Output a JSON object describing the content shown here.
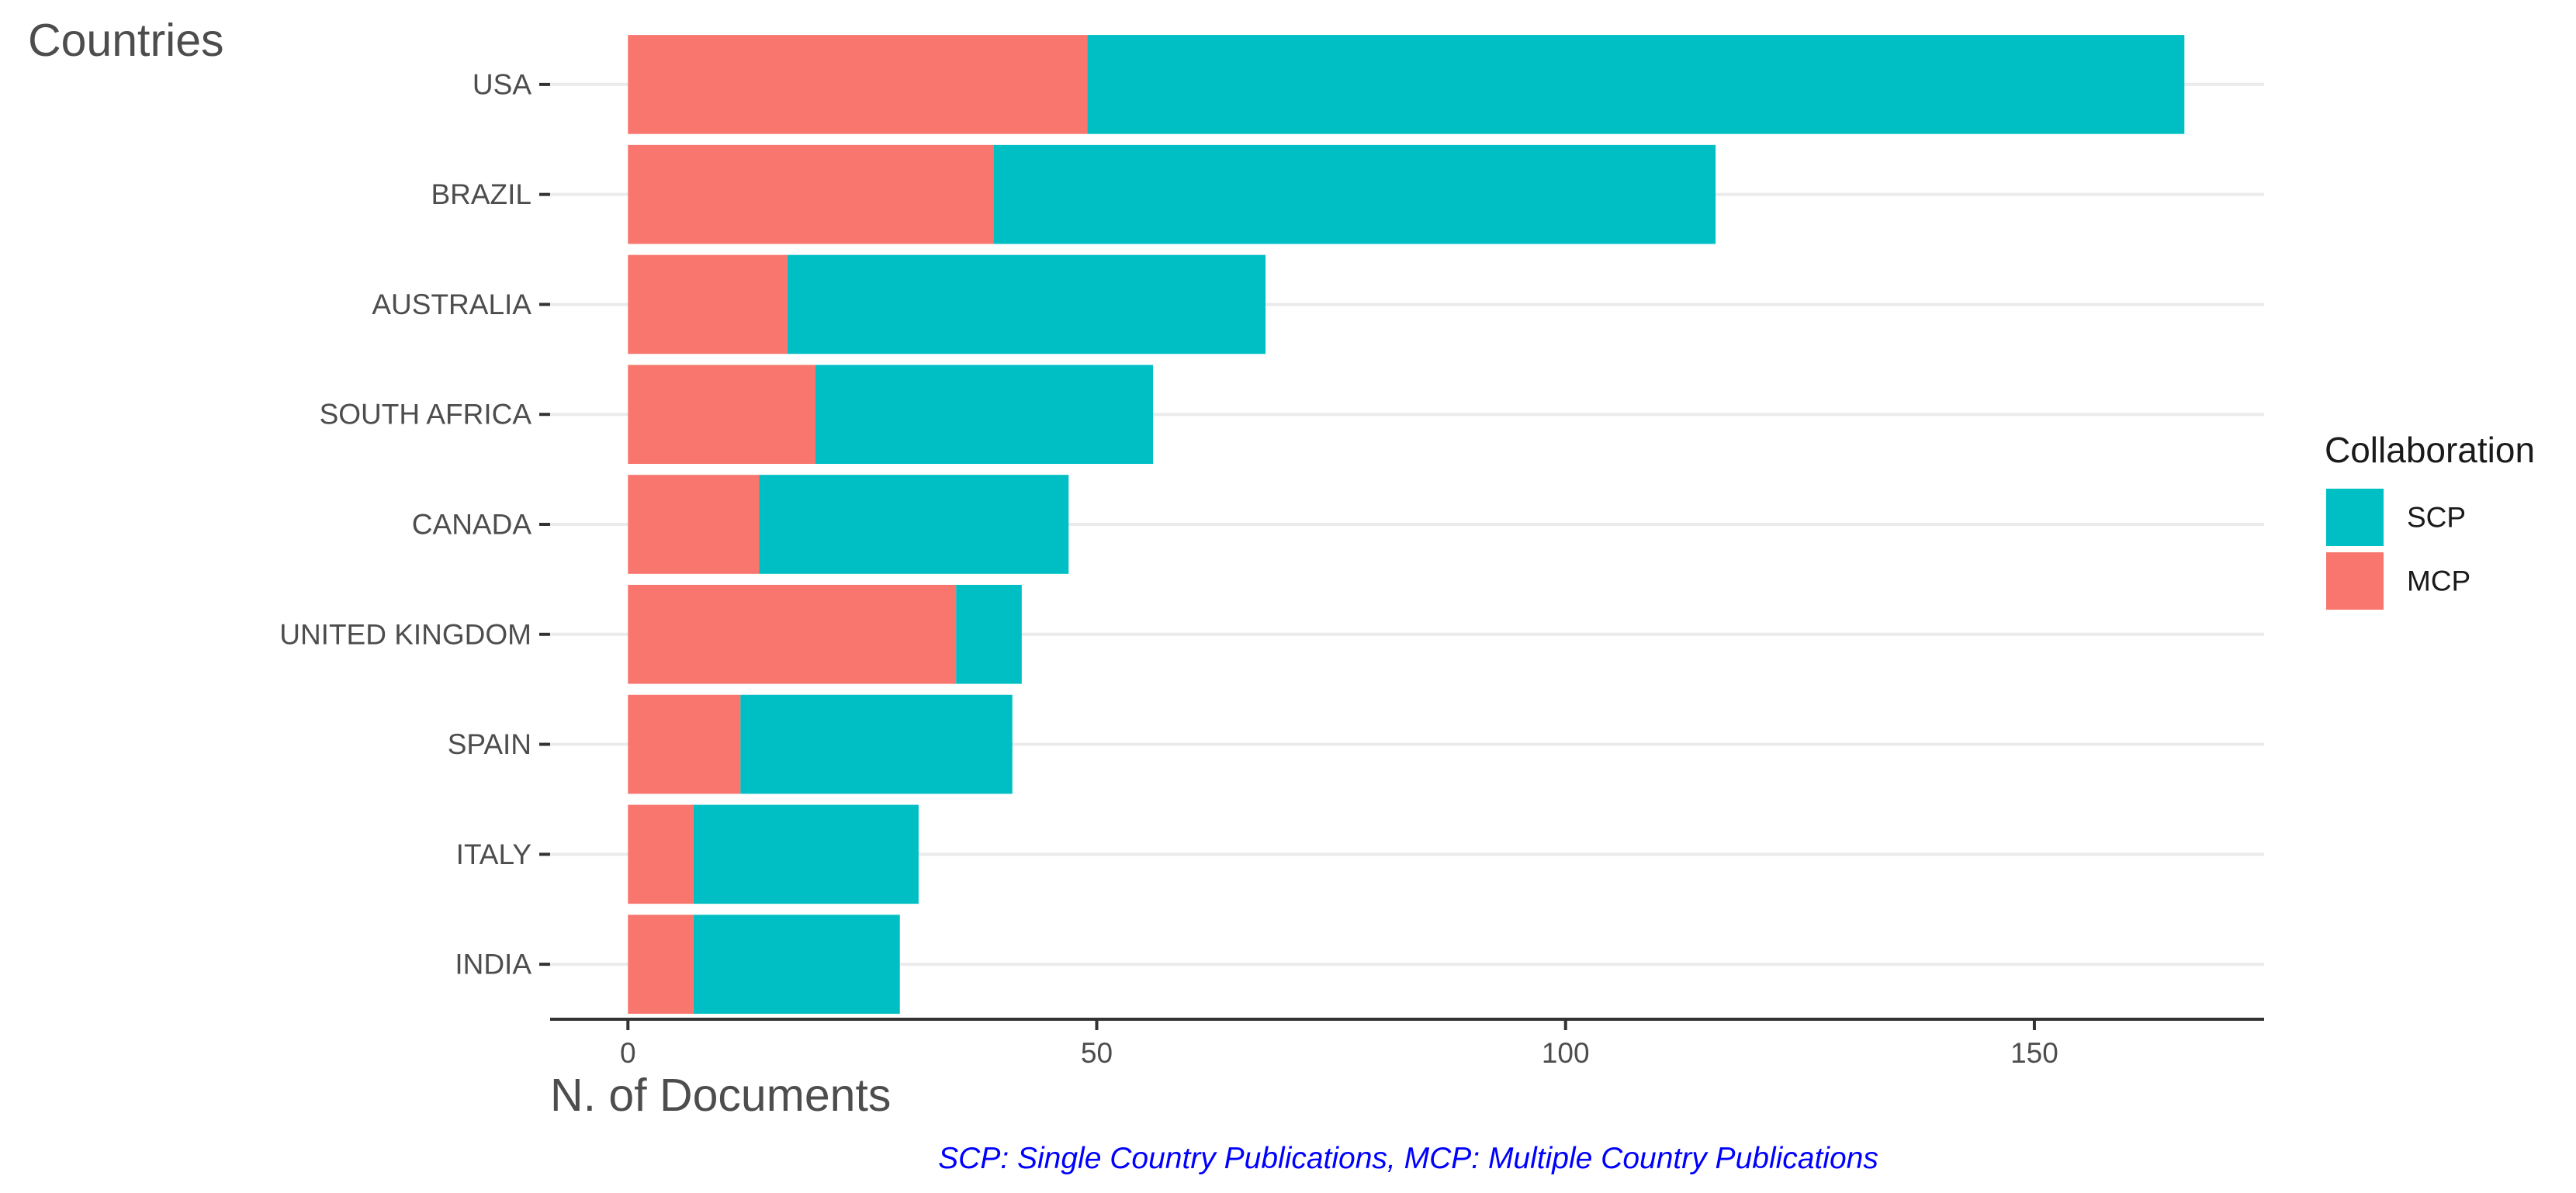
{
  "chart_data": {
    "type": "bar",
    "orientation": "horizontal",
    "stacked": true,
    "title": "Countries",
    "xlabel": "N. of Documents",
    "ylabel": "",
    "categories": [
      "USA",
      "BRAZIL",
      "AUSTRALIA",
      "SOUTH AFRICA",
      "CANADA",
      "UNITED KINGDOM",
      "SPAIN",
      "ITALY",
      "INDIA"
    ],
    "series": [
      {
        "name": "MCP",
        "color": "#f8766d",
        "values": [
          49,
          39,
          17,
          20,
          14,
          35,
          12,
          7,
          7
        ]
      },
      {
        "name": "SCP",
        "color": "#00bfc4",
        "values": [
          117,
          77,
          51,
          36,
          33,
          7,
          29,
          24,
          22
        ]
      }
    ],
    "xlim": [
      -8.3,
      174.5
    ],
    "xticks": [
      0,
      50,
      100,
      150
    ],
    "grid": true,
    "legend": {
      "title": "Collaboration",
      "position": "right",
      "items": [
        {
          "label": "SCP",
          "color": "#00bfc4"
        },
        {
          "label": "MCP",
          "color": "#f8766d"
        }
      ]
    },
    "caption": "SCP: Single Country Publications, MCP: Multiple Country Publications",
    "caption_color": "#0000ff"
  }
}
